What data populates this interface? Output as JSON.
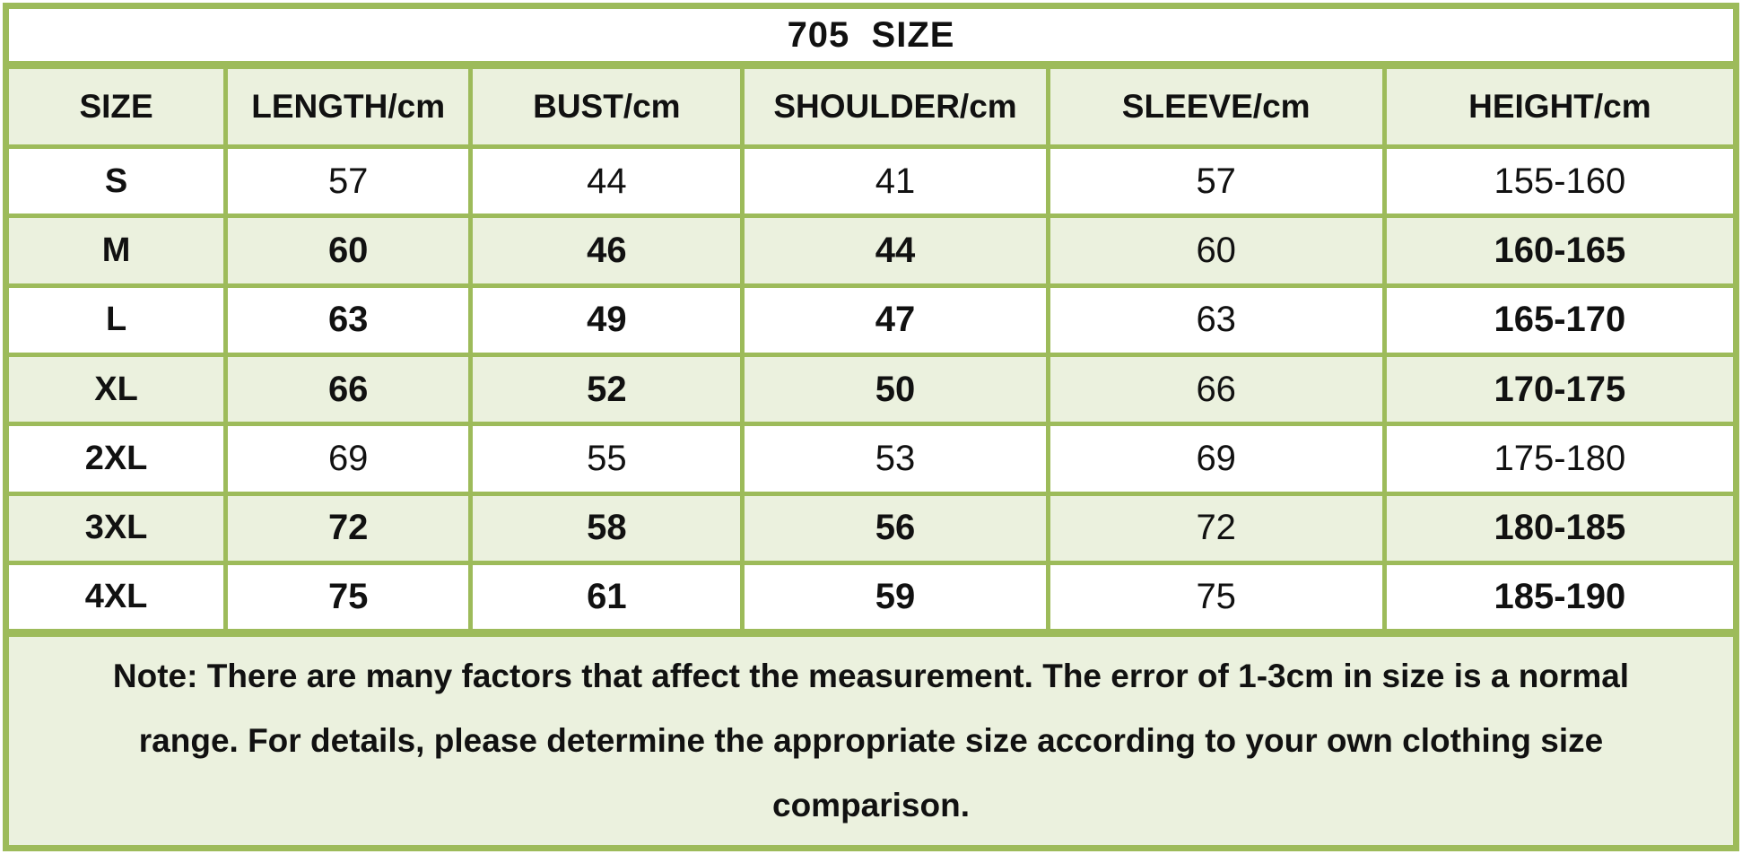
{
  "title": "705  SIZE",
  "note": "Note: There are many factors that affect the measurement. The error of 1-3cm in size is a normal range. For details, please determine the appropriate size according to your own clothing size comparison.",
  "colors": {
    "grid_green": "#9dbb5a",
    "shaded_row_bg": "#ebf1de",
    "text": "#111111"
  },
  "chart_data": {
    "type": "table",
    "title": "705 SIZE",
    "columns": [
      "SIZE",
      "LENGTH/cm",
      "BUST/cm",
      "SHOULDER/cm",
      "SLEEVE/cm",
      "HEIGHT/cm"
    ],
    "rows": [
      {
        "size": "S",
        "values": [
          "57",
          "44",
          "41",
          "57",
          "155-160"
        ],
        "bold": [
          false,
          false,
          false,
          false,
          false
        ],
        "shaded": false
      },
      {
        "size": "M",
        "values": [
          "60",
          "46",
          "44",
          "60",
          "160-165"
        ],
        "bold": [
          true,
          true,
          true,
          false,
          true
        ],
        "shaded": true
      },
      {
        "size": "L",
        "values": [
          "63",
          "49",
          "47",
          "63",
          "165-170"
        ],
        "bold": [
          true,
          true,
          true,
          false,
          true
        ],
        "shaded": false
      },
      {
        "size": "XL",
        "values": [
          "66",
          "52",
          "50",
          "66",
          "170-175"
        ],
        "bold": [
          true,
          true,
          true,
          false,
          true
        ],
        "shaded": true
      },
      {
        "size": "2XL",
        "values": [
          "69",
          "55",
          "53",
          "69",
          "175-180"
        ],
        "bold": [
          false,
          false,
          false,
          false,
          false
        ],
        "shaded": false
      },
      {
        "size": "3XL",
        "values": [
          "72",
          "58",
          "56",
          "72",
          "180-185"
        ],
        "bold": [
          true,
          true,
          true,
          false,
          true
        ],
        "shaded": true
      },
      {
        "size": "4XL",
        "values": [
          "75",
          "61",
          "59",
          "75",
          "185-190"
        ],
        "bold": [
          true,
          true,
          true,
          false,
          true
        ],
        "shaded": false
      }
    ],
    "note": "Note: There are many factors that affect the measurement. The error of 1-3cm in size is a normal range. For details, please determine the appropriate size according to your own clothing size comparison.",
    "layout_hints": {
      "grid": true,
      "title_position": "top-center",
      "note_position": "bottom"
    }
  }
}
